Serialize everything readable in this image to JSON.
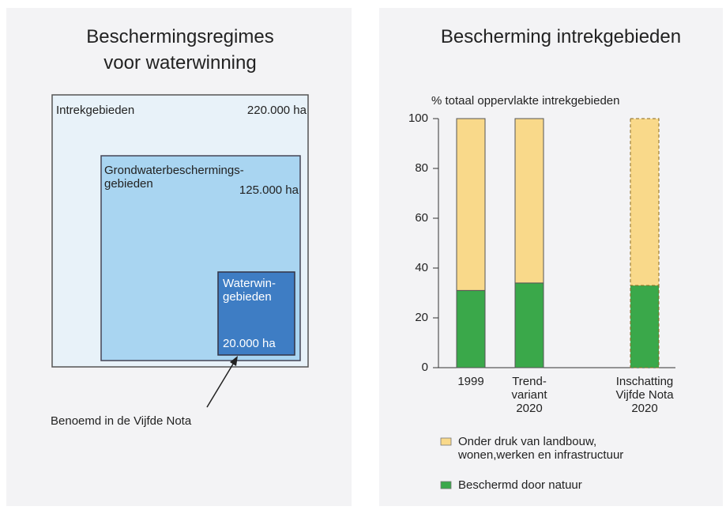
{
  "diagram": {
    "title": "Beschermingsregimes\nvoor waterwinning",
    "regions": [
      {
        "label": "Intrekgebieden",
        "area": "220.000 ha"
      },
      {
        "label": "Grondwaterbeschermings-\ngebieden",
        "area": "125.000 ha"
      },
      {
        "label": "Waterwin-\ngebieden",
        "area": "20.000 ha"
      }
    ],
    "annotation": "Benoemd in de Vijfde Nota"
  },
  "chart_data": {
    "type": "stacked_bar",
    "title": "Bescherming intrekgebieden",
    "y_label": "% totaal oppervlakte intrekgebieden",
    "categories": [
      "1999",
      "Trend-\nvariant\n2020",
      "Inschatting\nVijfde Nota\n2020"
    ],
    "estimate": [
      false,
      false,
      true
    ],
    "series": [
      {
        "name": "Beschermd door natuur",
        "color": "#3aa84a",
        "values": [
          31,
          34,
          33
        ]
      },
      {
        "name": "Onder druk van landbouw,\nwonen,werken en infrastructuur",
        "color": "#f9d98a",
        "values": [
          69,
          66,
          67
        ]
      }
    ],
    "ylim": [
      0,
      100
    ],
    "yticks": [
      0,
      20,
      40,
      60,
      80,
      100
    ]
  }
}
